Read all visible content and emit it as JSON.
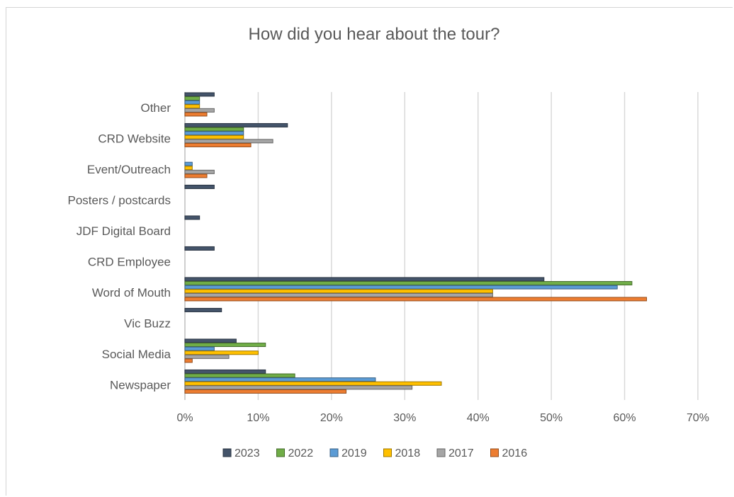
{
  "chart_data": {
    "type": "bar",
    "orientation": "horizontal",
    "title": "How did you hear about the tour?",
    "categories": [
      "Newspaper",
      "Social Media",
      "Vic Buzz",
      "Word of Mouth",
      "CRD Employee",
      "JDF Digital Board",
      "Posters / postcards",
      "Event/Outreach",
      "CRD Website",
      "Other"
    ],
    "x_ticks": [
      "0%",
      "10%",
      "20%",
      "30%",
      "40%",
      "50%",
      "60%",
      "70%"
    ],
    "xlim": [
      0,
      70
    ],
    "grid": true,
    "legend_position": "bottom",
    "series": [
      {
        "name": "2023",
        "color": "#44546a",
        "values": [
          11,
          7,
          5,
          49,
          4,
          2,
          4,
          0,
          14,
          4
        ]
      },
      {
        "name": "2022",
        "color": "#70ad47",
        "values": [
          15,
          11,
          0,
          61,
          0,
          0,
          0,
          0,
          8,
          2
        ]
      },
      {
        "name": "2019",
        "color": "#5b9bd5",
        "values": [
          26,
          4,
          0,
          59,
          0,
          0,
          0,
          1,
          8,
          2
        ]
      },
      {
        "name": "2018",
        "color": "#ffc000",
        "values": [
          35,
          10,
          0,
          42,
          0,
          0,
          0,
          1,
          8,
          2
        ]
      },
      {
        "name": "2017",
        "color": "#a5a5a5",
        "values": [
          31,
          6,
          0,
          42,
          0,
          0,
          0,
          4,
          12,
          4
        ]
      },
      {
        "name": "2016",
        "color": "#ed7d31",
        "values": [
          22,
          1,
          0,
          63,
          0,
          0,
          0,
          3,
          9,
          3
        ]
      }
    ]
  }
}
